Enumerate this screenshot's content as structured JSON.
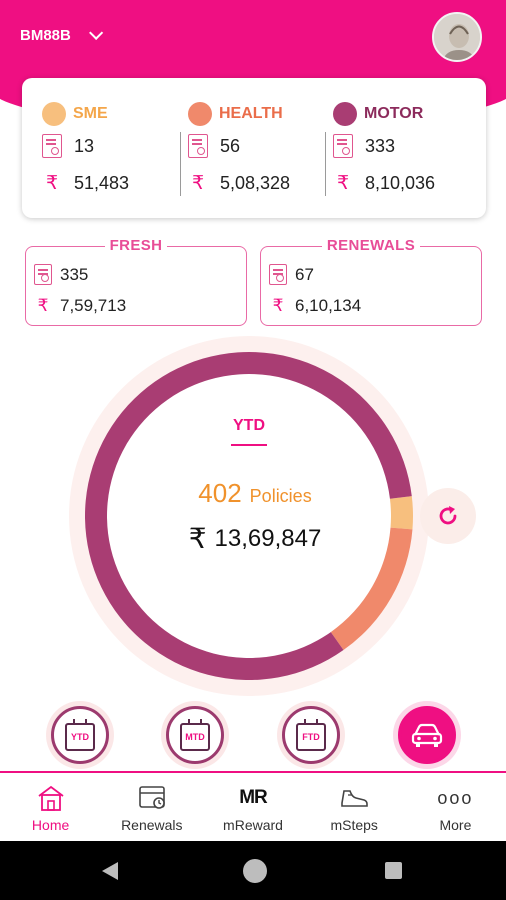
{
  "header": {
    "branch_code": "BM88B",
    "avatar_icon": "user-avatar",
    "brand_color": "#ef0f82"
  },
  "summary": {
    "segments": [
      {
        "name": "SME",
        "color": "#f7bf7e",
        "label_color": "#f4a64a",
        "count": "13",
        "amount": "51,483"
      },
      {
        "name": "HEALTH",
        "color": "#f0896b",
        "label_color": "#ea6d4a",
        "count": "56",
        "amount": "5,08,328"
      },
      {
        "name": "MOTOR",
        "color": "#a93d73",
        "label_color": "#8c2b5c",
        "count": "333",
        "amount": "8,10,036"
      }
    ],
    "rupee": "₹"
  },
  "fresh": {
    "title": "FRESH",
    "count": "335",
    "amount": "7,59,713"
  },
  "renewals": {
    "title": "RENEWALS",
    "count": "67",
    "amount": "6,10,134"
  },
  "chart_data": {
    "type": "pie",
    "title": "YTD",
    "categories": [
      "SME",
      "HEALTH",
      "MOTOR"
    ],
    "values": [
      13,
      56,
      333
    ],
    "colors": [
      "#f7bf7e",
      "#f0896b",
      "#a93d73"
    ],
    "total_policies": "402",
    "policies_label": "Policies",
    "total_premium": "13,69,847"
  },
  "periods": [
    {
      "label": "YTD",
      "active": false
    },
    {
      "label": "MTD",
      "active": false
    },
    {
      "label": "FTD",
      "active": false
    },
    {
      "label": "",
      "icon": "car-icon",
      "active": true
    }
  ],
  "nav": [
    {
      "label": "Home",
      "icon": "home-icon",
      "active": true
    },
    {
      "label": "Renewals",
      "icon": "renewals-icon",
      "active": false
    },
    {
      "label": "mReward",
      "icon": "mreward-icon",
      "active": false
    },
    {
      "label": "mSteps",
      "icon": "shoe-icon",
      "active": false
    },
    {
      "label": "More",
      "icon": "more-dots-icon",
      "active": false
    }
  ],
  "mreward_logo": "MR",
  "more_dots": "ooo"
}
